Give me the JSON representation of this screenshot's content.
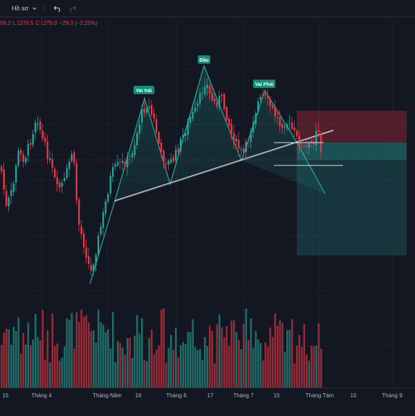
{
  "toolbar": {
    "profile_label": "Hồ sơ",
    "dropdown_icon": "chevron-down-icon",
    "undo_icon": "undo-icon",
    "redo_icon": "redo-icon"
  },
  "ohlc": {
    "high": "06.2",
    "low_label": "L",
    "low": "1270.5",
    "close_label": "C",
    "close": "1275.0",
    "change": "−29.3 (−2.25%)"
  },
  "annotations": {
    "left_shoulder": "Vai trái",
    "head": "Đầu",
    "right_shoulder": "Vai Phải"
  },
  "colors": {
    "up": "#26a69a",
    "down": "#f23645",
    "background": "#131722",
    "label_bg": "#0f8f78"
  },
  "x_axis_labels": [
    "15",
    "Tháng 4",
    "Tháng Năm",
    "16",
    "Tháng 6",
    "17",
    "Tháng 7",
    "15",
    "Tháng Tám",
    "15",
    "Tháng 9"
  ]
}
